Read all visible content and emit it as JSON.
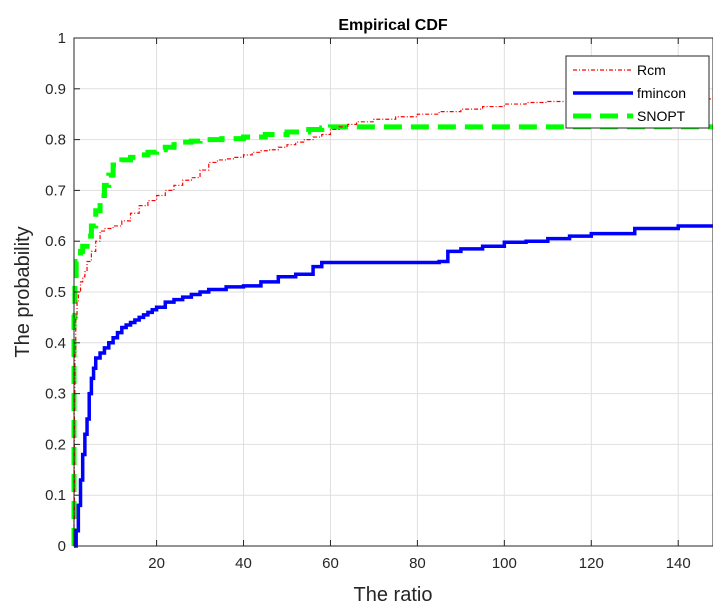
{
  "chart_data": {
    "type": "line",
    "title": "Empirical CDF",
    "xlabel": "The ratio",
    "ylabel": "The probability",
    "xlim": [
      1,
      148
    ],
    "ylim": [
      0,
      1
    ],
    "xticks": [
      20,
      40,
      60,
      80,
      100,
      120,
      140
    ],
    "yticks": [
      0,
      0.1,
      0.2,
      0.3,
      0.4,
      0.5,
      0.6,
      0.7,
      0.8,
      0.9,
      1
    ],
    "grid": true,
    "legend_position": "top-right",
    "series": [
      {
        "name": "Rcm",
        "color": "#ff0000",
        "style": "dash-dot",
        "x": [
          1,
          1,
          1.1,
          1.2,
          1.4,
          1.7,
          2,
          2.5,
          3,
          3.5,
          4,
          5,
          6,
          7,
          8,
          10,
          12,
          14,
          16,
          18,
          20,
          22,
          24,
          26,
          28,
          30,
          32,
          34,
          36,
          38,
          40,
          42,
          44,
          46,
          48,
          50,
          52,
          54,
          56,
          58,
          60,
          62,
          64,
          66,
          70,
          75,
          80,
          85,
          90,
          95,
          100,
          105,
          110,
          115,
          120,
          130,
          140,
          148
        ],
        "y": [
          0,
          0.05,
          0.3,
          0.38,
          0.45,
          0.48,
          0.5,
          0.52,
          0.53,
          0.54,
          0.56,
          0.58,
          0.6,
          0.62,
          0.625,
          0.63,
          0.64,
          0.655,
          0.67,
          0.68,
          0.69,
          0.7,
          0.71,
          0.72,
          0.725,
          0.74,
          0.755,
          0.76,
          0.762,
          0.765,
          0.77,
          0.775,
          0.778,
          0.78,
          0.785,
          0.79,
          0.795,
          0.8,
          0.805,
          0.81,
          0.82,
          0.825,
          0.83,
          0.835,
          0.84,
          0.845,
          0.85,
          0.855,
          0.86,
          0.865,
          0.87,
          0.873,
          0.875,
          0.878,
          0.88,
          0.88,
          0.88,
          0.88
        ]
      },
      {
        "name": "fmincon",
        "color": "#0000ff",
        "style": "solid",
        "x": [
          1,
          1.5,
          2,
          2.5,
          3,
          3.5,
          4,
          4.5,
          5,
          5.5,
          6,
          7,
          8,
          9,
          10,
          11,
          12,
          13,
          14,
          15,
          16,
          17,
          18,
          19,
          20,
          22,
          24,
          26,
          28,
          30,
          32,
          36,
          40,
          44,
          48,
          52,
          56,
          58,
          62,
          70,
          80,
          85,
          87,
          90,
          95,
          100,
          105,
          110,
          115,
          120,
          130,
          140,
          148
        ],
        "y": [
          0,
          0.03,
          0.08,
          0.13,
          0.18,
          0.22,
          0.25,
          0.3,
          0.33,
          0.35,
          0.37,
          0.38,
          0.39,
          0.4,
          0.41,
          0.42,
          0.43,
          0.435,
          0.44,
          0.445,
          0.45,
          0.455,
          0.46,
          0.465,
          0.47,
          0.48,
          0.485,
          0.49,
          0.495,
          0.5,
          0.505,
          0.51,
          0.512,
          0.52,
          0.53,
          0.535,
          0.55,
          0.558,
          0.558,
          0.558,
          0.558,
          0.56,
          0.58,
          0.585,
          0.59,
          0.598,
          0.6,
          0.605,
          0.61,
          0.615,
          0.625,
          0.63,
          0.63
        ]
      },
      {
        "name": "SNOPT",
        "color": "#00ff00",
        "style": "dashed",
        "x": [
          1,
          1,
          1,
          1.2,
          1.5,
          2,
          2.5,
          3,
          4,
          5,
          6,
          7,
          8,
          9,
          10,
          12,
          14,
          16,
          18,
          20,
          22,
          24,
          26,
          28,
          30,
          35,
          40,
          45,
          50,
          55,
          58,
          60,
          148
        ],
        "y": [
          0,
          0.2,
          0.45,
          0.52,
          0.56,
          0.57,
          0.58,
          0.59,
          0.61,
          0.63,
          0.66,
          0.69,
          0.71,
          0.73,
          0.75,
          0.76,
          0.765,
          0.77,
          0.775,
          0.78,
          0.785,
          0.79,
          0.795,
          0.797,
          0.8,
          0.802,
          0.805,
          0.81,
          0.815,
          0.82,
          0.823,
          0.825,
          0.825
        ]
      }
    ]
  }
}
